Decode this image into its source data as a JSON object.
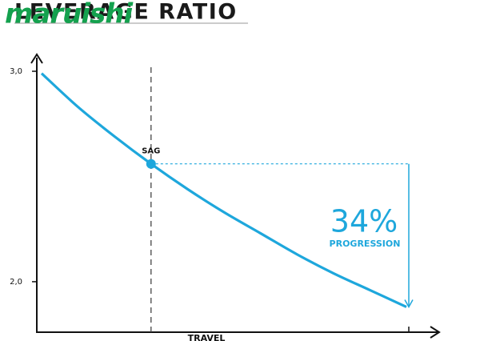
{
  "chart_data": {
    "type": "line",
    "logo": "maruishi",
    "title": "LEVERAGE RATIO",
    "xlabel": "TRAVEL",
    "categories": [
      null,
      null,
      null,
      null,
      null,
      null,
      null,
      null,
      null,
      null,
      null
    ],
    "values": [
      2.99,
      2.83,
      2.69,
      2.56,
      2.44,
      2.33,
      2.23,
      2.13,
      2.04,
      1.96,
      1.88
    ],
    "color": "#1ea7dc",
    "ylim": [
      1.76,
      3.08
    ],
    "yticks": [
      {
        "value": 3,
        "label": "3,0"
      },
      {
        "value": 2,
        "label": "2,0"
      }
    ],
    "annotations": [
      {
        "text": "SAG"
      },
      {
        "text": "34%"
      },
      {
        "text": "PROGRESSION"
      }
    ]
  }
}
